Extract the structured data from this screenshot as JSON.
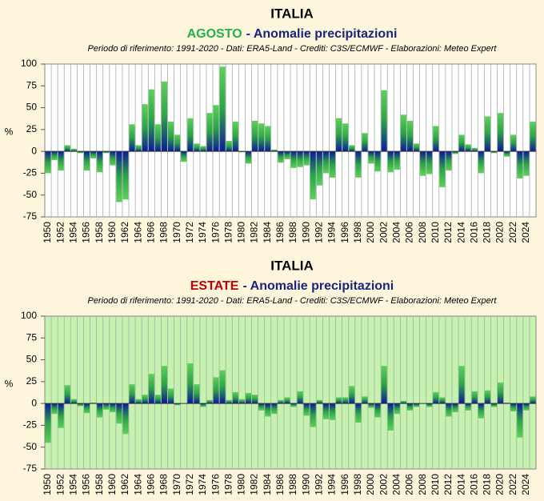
{
  "chart_data": [
    {
      "type": "bar",
      "title": "ITALIA",
      "subtitle_highlight": "AGOSTO",
      "subtitle_highlight_color": "#22b14c",
      "subtitle_rest": "- Anomalie precipitazioni",
      "note": "Periodo di riferimento: 1991-2020 - Dati: ERA5-Land - Crediti: C3S/ECMWF - Elaborazioni: Meteo Expert",
      "ylabel": "%",
      "plot_color": "#ffffff",
      "categories": [
        "1950",
        null,
        "1952",
        null,
        "1954",
        null,
        "1956",
        null,
        "1958",
        null,
        "1960",
        null,
        "1962",
        null,
        "1964",
        null,
        "1966",
        null,
        "1968",
        null,
        "1970",
        null,
        "1972",
        null,
        "1974",
        null,
        "1976",
        null,
        "1978",
        null,
        "1980",
        null,
        "1982",
        null,
        "1984",
        null,
        "1986",
        null,
        "1988",
        null,
        "1990",
        null,
        "1992",
        null,
        "1994",
        null,
        "1996",
        null,
        "1998",
        null,
        "2000",
        null,
        "2002",
        null,
        "2004",
        null,
        "2006",
        null,
        "2008",
        null,
        "2010",
        null,
        "2012",
        null,
        "2014",
        null,
        "2016",
        null,
        "2018",
        null,
        "2020",
        null,
        "2022",
        null,
        "2024",
        null
      ],
      "values": [
        -25,
        -10,
        -22,
        7,
        3,
        -2,
        -22,
        -8,
        -24,
        -2,
        -16,
        -58,
        -55,
        31,
        7,
        54,
        71,
        31,
        80,
        34,
        19,
        -12,
        38,
        9,
        6,
        44,
        53,
        97,
        12,
        34,
        -1,
        -14,
        35,
        32,
        29,
        2,
        -13,
        -9,
        -19,
        -18,
        -16,
        -55,
        -39,
        -25,
        -30,
        38,
        32,
        7,
        -30,
        21,
        -14,
        -23,
        70,
        -24,
        -21,
        42,
        35,
        9,
        -28,
        -26,
        29,
        -41,
        -22,
        -3,
        19,
        8,
        4,
        -25,
        40,
        -2,
        44,
        -6,
        19,
        -31,
        -28,
        34
      ],
      "ylim": [
        -75,
        100
      ],
      "yticks": [
        100,
        75,
        50,
        25,
        0,
        -25,
        -50,
        -75
      ],
      "grid": true
    },
    {
      "type": "bar",
      "title": "ITALIA",
      "subtitle_highlight": "ESTATE",
      "subtitle_highlight_color": "#c00000",
      "subtitle_rest": "- Anomalie precipitazioni",
      "note": "Periodo di riferimento: 1991-2020 - Dati: ERA5-Land - Crediti: C3S/ECMWF - Elaborazioni: Meteo Expert",
      "ylabel": "%",
      "plot_color": "#c6f2b0",
      "categories": [
        "1950",
        null,
        "1952",
        null,
        "1954",
        null,
        "1956",
        null,
        "1958",
        null,
        "1960",
        null,
        "1962",
        null,
        "1964",
        null,
        "1966",
        null,
        "1968",
        null,
        "1970",
        null,
        "1972",
        null,
        "1974",
        null,
        "1976",
        null,
        "1978",
        null,
        "1980",
        null,
        "1982",
        null,
        "1984",
        null,
        "1986",
        null,
        "1988",
        null,
        "1990",
        null,
        "1992",
        null,
        "1994",
        null,
        "1996",
        null,
        "1998",
        null,
        "2000",
        null,
        "2002",
        null,
        "2004",
        null,
        "2006",
        null,
        "2008",
        null,
        "2010",
        null,
        "2012",
        null,
        "2014",
        null,
        "2016",
        null,
        "2018",
        null,
        "2020",
        null,
        "2022",
        null,
        "2024",
        null
      ],
      "values": [
        -45,
        -12,
        -28,
        21,
        5,
        -3,
        -11,
        1,
        -16,
        -7,
        -10,
        -23,
        -35,
        22,
        5,
        10,
        34,
        10,
        43,
        17,
        -2,
        0,
        46,
        22,
        -4,
        4,
        30,
        38,
        4,
        13,
        5,
        12,
        10,
        -8,
        -15,
        -12,
        4,
        7,
        -4,
        14,
        -14,
        -27,
        4,
        -18,
        -19,
        7,
        7,
        20,
        -22,
        8,
        -5,
        -16,
        43,
        -31,
        -12,
        3,
        -8,
        -4,
        0,
        -4,
        13,
        7,
        -15,
        -10,
        43,
        -8,
        14,
        -17,
        15,
        -4,
        24,
        1,
        -9,
        -39,
        -8,
        8
      ],
      "ylim": [
        -75,
        100
      ],
      "yticks": [
        100,
        75,
        50,
        25,
        0,
        -25,
        -50,
        -75
      ],
      "grid": true
    }
  ]
}
